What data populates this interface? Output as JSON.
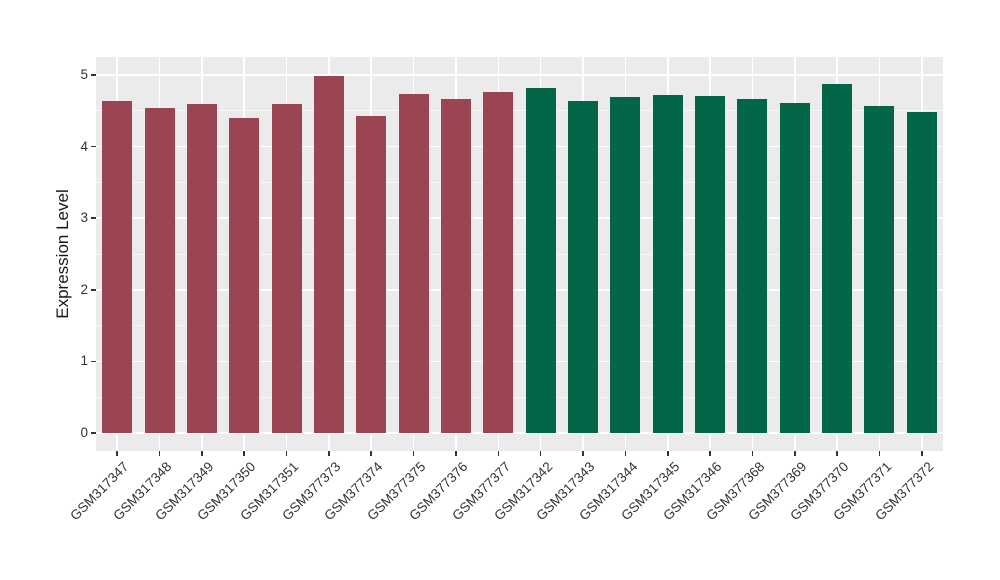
{
  "figure": {
    "panel_background": "#ebebeb",
    "gridline_color": "#ffffff",
    "axis_text_color": "#333333",
    "axis_title_color": "#1a1a1a"
  },
  "chart_data": {
    "type": "bar",
    "title": "",
    "xlabel": "",
    "ylabel": "Expression Level",
    "ylim": [
      -0.25,
      5.25
    ],
    "yticks": [
      0,
      1,
      2,
      3,
      4,
      5
    ],
    "yticks_minor": [
      0.5,
      1.5,
      2.5,
      3.5,
      4.5
    ],
    "grid": true,
    "legend": "none",
    "group_colors": {
      "red_group": "#9b4452",
      "green_group": "#036649"
    },
    "bars": [
      {
        "label": "GSM317347",
        "value": 4.64,
        "color": "#9b4452"
      },
      {
        "label": "GSM317348",
        "value": 4.54,
        "color": "#9b4452"
      },
      {
        "label": "GSM317349",
        "value": 4.6,
        "color": "#9b4452"
      },
      {
        "label": "GSM317350",
        "value": 4.4,
        "color": "#9b4452"
      },
      {
        "label": "GSM317351",
        "value": 4.59,
        "color": "#9b4452"
      },
      {
        "label": "GSM377373",
        "value": 4.99,
        "color": "#9b4452"
      },
      {
        "label": "GSM377374",
        "value": 4.42,
        "color": "#9b4452"
      },
      {
        "label": "GSM377375",
        "value": 4.73,
        "color": "#9b4452"
      },
      {
        "label": "GSM377376",
        "value": 4.67,
        "color": "#9b4452"
      },
      {
        "label": "GSM377377",
        "value": 4.76,
        "color": "#9b4452"
      },
      {
        "label": "GSM317342",
        "value": 4.82,
        "color": "#036649"
      },
      {
        "label": "GSM317343",
        "value": 4.64,
        "color": "#036649"
      },
      {
        "label": "GSM317344",
        "value": 4.69,
        "color": "#036649"
      },
      {
        "label": "GSM317345",
        "value": 4.72,
        "color": "#036649"
      },
      {
        "label": "GSM317346",
        "value": 4.71,
        "color": "#036649"
      },
      {
        "label": "GSM377368",
        "value": 4.66,
        "color": "#036649"
      },
      {
        "label": "GSM377369",
        "value": 4.61,
        "color": "#036649"
      },
      {
        "label": "GSM377370",
        "value": 4.87,
        "color": "#036649"
      },
      {
        "label": "GSM377371",
        "value": 4.57,
        "color": "#036649"
      },
      {
        "label": "GSM377372",
        "value": 4.48,
        "color": "#036649"
      }
    ]
  }
}
